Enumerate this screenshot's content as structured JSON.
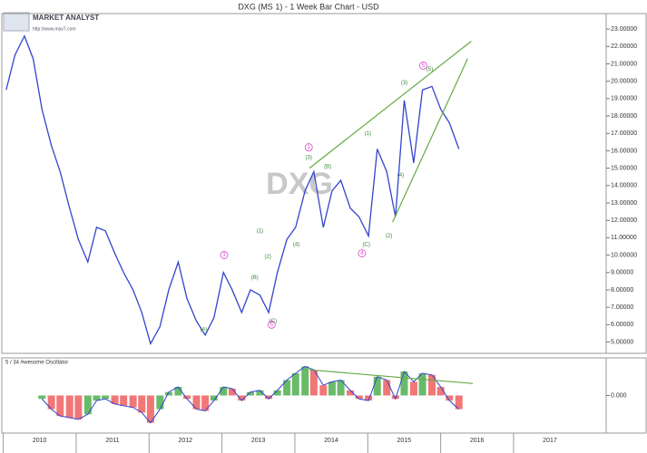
{
  "logo": {
    "name": "MARKET ANALYST",
    "url": "http://www.mav7.com"
  },
  "chart_data": [
    {
      "type": "line",
      "title": "DXG (MS 1) - 1 Week Bar Chart - USD",
      "watermark": "DXG",
      "color": "#3344cc",
      "x": [
        2010.04,
        2010.16,
        2010.29,
        2010.41,
        2010.53,
        2010.66,
        2010.78,
        2010.91,
        2011.03,
        2011.16,
        2011.28,
        2011.4,
        2011.53,
        2011.65,
        2011.78,
        2011.9,
        2012.02,
        2012.15,
        2012.27,
        2012.4,
        2012.52,
        2012.65,
        2012.77,
        2012.89,
        2013.02,
        2013.14,
        2013.27,
        2013.39,
        2013.52,
        2013.64,
        2013.76,
        2013.89,
        2014.01,
        2014.14,
        2014.26,
        2014.39,
        2014.51,
        2014.63,
        2014.76,
        2014.88,
        2015.01,
        2015.13,
        2015.26,
        2015.38,
        2015.5,
        2015.63,
        2015.75,
        2015.88,
        2016.0,
        2016.12,
        2016.25
      ],
      "values": [
        19.5,
        21.5,
        22.6,
        21.3,
        18.4,
        16.3,
        14.8,
        12.7,
        10.9,
        9.6,
        11.6,
        11.4,
        10.1,
        9.0,
        8.0,
        6.7,
        4.9,
        5.9,
        8.0,
        9.6,
        7.5,
        6.2,
        5.4,
        6.4,
        9.0,
        8.0,
        6.7,
        8.0,
        7.7,
        6.7,
        9.0,
        10.9,
        11.6,
        13.7,
        14.8,
        11.6,
        13.7,
        14.3,
        12.7,
        12.2,
        11.1,
        16.1,
        14.8,
        12.2,
        18.9,
        15.3,
        19.5,
        19.7,
        18.4,
        17.6,
        16.1
      ],
      "xlim": [
        2009.98,
        2018.27
      ],
      "ylim": [
        4.35,
        23.89
      ],
      "yticks": [
        {
          "value": 5,
          "label": "5.00000"
        },
        {
          "value": 6,
          "label": "6.00000"
        },
        {
          "value": 7,
          "label": "7.00000"
        },
        {
          "value": 8,
          "label": "8.00000"
        },
        {
          "value": 9,
          "label": "9.00000"
        },
        {
          "value": 10,
          "label": "10.00000"
        },
        {
          "value": 11,
          "label": "11.00000"
        },
        {
          "value": 12,
          "label": "12.00000"
        },
        {
          "value": 13,
          "label": "13.00000"
        },
        {
          "value": 14,
          "label": "14.00000"
        },
        {
          "value": 15,
          "label": "15.00000"
        },
        {
          "value": 16,
          "label": "16.00000"
        },
        {
          "value": 17,
          "label": "17.00000"
        },
        {
          "value": 18,
          "label": "18.00000"
        },
        {
          "value": 19,
          "label": "19.00000"
        },
        {
          "value": 20,
          "label": "20.00000"
        },
        {
          "value": 21,
          "label": "21.00000"
        },
        {
          "value": 22,
          "label": "22.00000"
        },
        {
          "value": 23,
          "label": "23.00000"
        }
      ],
      "trendline_color": "#66aa44",
      "trendlines": [
        {
          "x": [
            2014.2,
            2016.42
          ],
          "y": [
            15.0,
            22.3
          ]
        },
        {
          "x": [
            2015.34,
            2016.37
          ],
          "y": [
            11.9,
            21.3
          ]
        }
      ],
      "annotations": [
        {
          "text": "3",
          "x": 2013.03,
          "y": 10.0,
          "circled": true
        },
        {
          "text": "5",
          "x": 2013.68,
          "y": 6.0,
          "circled": true
        },
        {
          "text": "1",
          "x": 2014.19,
          "y": 16.2,
          "circled": true
        },
        {
          "text": "4",
          "x": 2014.92,
          "y": 10.1,
          "circled": true
        },
        {
          "text": "5",
          "x": 2015.76,
          "y": 20.9,
          "circled": true
        },
        {
          "text": "(A)",
          "x": 2012.75,
          "y": 5.7
        },
        {
          "text": "(B)",
          "x": 2013.45,
          "y": 8.7
        },
        {
          "text": "(C)",
          "x": 2013.7,
          "y": 6.2
        },
        {
          "text": "(1)",
          "x": 2013.52,
          "y": 11.4
        },
        {
          "text": "(2)",
          "x": 2013.63,
          "y": 9.9
        },
        {
          "text": "(3)",
          "x": 2014.19,
          "y": 15.6
        },
        {
          "text": "(4)",
          "x": 2014.02,
          "y": 10.6
        },
        {
          "text": "(B)",
          "x": 2014.45,
          "y": 15.1
        },
        {
          "text": "(C)",
          "x": 2014.98,
          "y": 10.6
        },
        {
          "text": "(1)",
          "x": 2015.0,
          "y": 17.0
        },
        {
          "text": "(2)",
          "x": 2015.29,
          "y": 11.1
        },
        {
          "text": "(3)",
          "x": 2015.5,
          "y": 19.9
        },
        {
          "text": "(4)",
          "x": 2015.45,
          "y": 14.6
        },
        {
          "text": "(5)",
          "x": 2015.85,
          "y": 20.7
        }
      ]
    },
    {
      "type": "bar",
      "title": "5 / 34 Awesome Oscillator",
      "up_color": "#44aa44",
      "down_color": "#ee5555",
      "line_color": "#3344cc",
      "x": [
        2010.04,
        2010.16,
        2010.29,
        2010.41,
        2010.53,
        2010.66,
        2010.78,
        2010.91,
        2011.03,
        2011.16,
        2011.28,
        2011.4,
        2011.53,
        2011.65,
        2011.78,
        2011.9,
        2012.02,
        2012.15,
        2012.27,
        2012.4,
        2012.52,
        2012.65,
        2012.77,
        2012.89,
        2013.02,
        2013.14,
        2013.27,
        2013.39,
        2013.52,
        2013.64,
        2013.76,
        2013.89,
        2014.01,
        2014.14,
        2014.26,
        2014.39,
        2014.51,
        2014.63,
        2014.76,
        2014.88,
        2015.01,
        2015.13,
        2015.26,
        2015.38,
        2015.5,
        2015.63,
        2015.75,
        2015.88,
        2016.0,
        2016.12,
        2016.25
      ],
      "values": [
        null,
        null,
        null,
        null,
        -0.2,
        -0.8,
        -1.2,
        -1.3,
        -1.4,
        -1.1,
        -0.3,
        -0.2,
        -0.5,
        -0.6,
        -0.7,
        -1.0,
        -1.6,
        -0.8,
        0.2,
        0.5,
        -0.2,
        -0.8,
        -0.9,
        -0.3,
        0.5,
        0.4,
        -0.3,
        0.2,
        0.3,
        -0.2,
        0.3,
        0.9,
        1.3,
        1.7,
        1.5,
        0.6,
        0.8,
        0.9,
        0.3,
        -0.2,
        -0.3,
        1.1,
        0.9,
        -0.2,
        1.4,
        0.8,
        1.3,
        1.2,
        0.5,
        -0.3,
        -0.8
      ],
      "xlim": [
        2009.98,
        2018.27
      ],
      "ylim": [
        -2.2,
        2.2
      ],
      "yticks": [
        {
          "value": 0,
          "label": "0.000"
        }
      ],
      "trendline_color": "#66aa44",
      "trendlines": [
        {
          "x": [
            2014.2,
            2016.44
          ],
          "y": [
            1.5,
            0.7
          ]
        }
      ],
      "xticks": [
        {
          "value": 2010,
          "label": "2010"
        },
        {
          "value": 2011,
          "label": "2011"
        },
        {
          "value": 2012,
          "label": "2012"
        },
        {
          "value": 2013,
          "label": "2013"
        },
        {
          "value": 2014,
          "label": "2014"
        },
        {
          "value": 2015,
          "label": "2015"
        },
        {
          "value": 2016,
          "label": "2016"
        },
        {
          "value": 2017,
          "label": "2017"
        }
      ]
    }
  ]
}
